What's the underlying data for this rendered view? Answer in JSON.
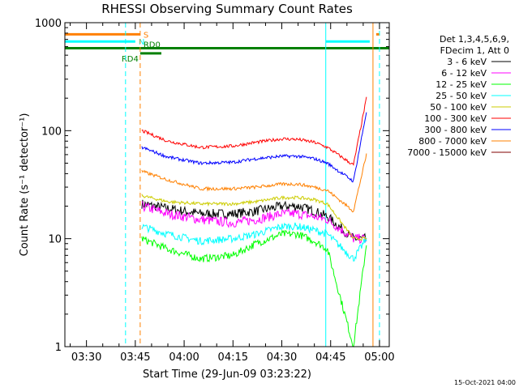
{
  "chart_data": {
    "type": "line",
    "title": "RHESSI Observing Summary Count Rates",
    "xlabel": "Start Time (29-Jun-09 03:23:22)",
    "ylabel": "Count Rate (s⁻¹ detector⁻¹)",
    "y_scale": "log",
    "xlim": [
      "03:23:22",
      "05:03:00"
    ],
    "ylim": [
      1,
      1000
    ],
    "x_ticks": [
      "03:30",
      "03:45",
      "04:00",
      "04:15",
      "04:30",
      "04:45",
      "05:00"
    ],
    "y_ticks": [
      "1",
      "10",
      "100",
      "1000"
    ],
    "legend_header": [
      "Det 1,3,4,5,6,9,",
      "FDecim 1, Att 0"
    ],
    "legend_position": "right",
    "timestamp": "15-Oct-2021 04:00",
    "flags": [
      {
        "label": "S",
        "color": "#ff8000",
        "y": 780,
        "x_start": "03:23:22",
        "x_end": "03:46:30"
      },
      {
        "label": "N",
        "color": "#00ffff",
        "y": 670,
        "x_start": "03:23:22",
        "x_end": "03:45:00"
      },
      {
        "label": "RD0",
        "color": "#008000",
        "y": 580,
        "x_start": "03:23:22",
        "x_end": "05:03:00"
      },
      {
        "label": "RD4",
        "color": "#008000",
        "y": 520,
        "x_start": "03:46:30",
        "x_end": "03:53:00"
      }
    ],
    "vertical_markers": [
      {
        "x": "03:42:00",
        "color": "#00ffff",
        "style": "dashed"
      },
      {
        "x": "03:46:30",
        "color": "#ff8000",
        "style": "dashed"
      },
      {
        "x": "04:43:30",
        "color": "#00ffff",
        "style": "solid"
      },
      {
        "x": "04:58:00",
        "color": "#ff8000",
        "style": "solid"
      },
      {
        "x": "05:00:00",
        "color": "#00ffff",
        "style": "dashed"
      }
    ],
    "series": [
      {
        "name": "3 - 6 keV",
        "color": "#000000",
        "x": [
          "03:47",
          "03:55",
          "04:05",
          "04:15",
          "04:22",
          "04:30",
          "04:35",
          "04:40",
          "04:44",
          "04:52",
          "04:56"
        ],
        "values": [
          21,
          19,
          17,
          17,
          18,
          20,
          20,
          18,
          16,
          10,
          10
        ]
      },
      {
        "name": "6 - 12 keV",
        "color": "#ff00ff",
        "x": [
          "03:47",
          "03:55",
          "04:05",
          "04:15",
          "04:22",
          "04:30",
          "04:35",
          "04:40",
          "04:44",
          "04:52",
          "04:56"
        ],
        "values": [
          20,
          17,
          15,
          14,
          15,
          17,
          17,
          16,
          15,
          10,
          10
        ]
      },
      {
        "name": "12 - 25 keV",
        "color": "#00ff00",
        "x": [
          "03:47",
          "03:55",
          "04:05",
          "04:15",
          "04:22",
          "04:30",
          "04:35",
          "04:40",
          "04:44",
          "04:52",
          "04:56"
        ],
        "values": [
          10,
          8,
          6.5,
          7,
          9,
          11,
          11,
          9.5,
          8,
          1,
          9
        ]
      },
      {
        "name": "25 - 50 keV",
        "color": "#00ffff",
        "x": [
          "03:47",
          "03:55",
          "04:05",
          "04:15",
          "04:22",
          "04:30",
          "04:35",
          "04:40",
          "04:44",
          "04:52",
          "04:56"
        ],
        "values": [
          13,
          11,
          9.5,
          10,
          11,
          13,
          13,
          12,
          11,
          6.5,
          10
        ]
      },
      {
        "name": "50 - 100 keV",
        "color": "#cccc00",
        "x": [
          "03:47",
          "03:55",
          "04:05",
          "04:15",
          "04:22",
          "04:30",
          "04:35",
          "04:40",
          "04:44",
          "04:52",
          "04:56"
        ],
        "values": [
          25,
          22,
          21,
          21,
          22,
          24,
          24,
          23,
          21,
          10,
          10
        ]
      },
      {
        "name": "100 - 300 keV",
        "color": "#ff0000",
        "x": [
          "03:47",
          "03:55",
          "04:05",
          "04:15",
          "04:22",
          "04:30",
          "04:35",
          "04:40",
          "04:44",
          "04:52",
          "04:56"
        ],
        "values": [
          100,
          80,
          70,
          72,
          78,
          84,
          83,
          78,
          70,
          48,
          200
        ]
      },
      {
        "name": "300 - 800 keV",
        "color": "#0000ff",
        "x": [
          "03:47",
          "03:55",
          "04:05",
          "04:15",
          "04:22",
          "04:30",
          "04:35",
          "04:40",
          "04:44",
          "04:52",
          "04:56"
        ],
        "values": [
          70,
          57,
          50,
          51,
          55,
          58,
          58,
          55,
          50,
          34,
          150
        ]
      },
      {
        "name": "800 - 7000 keV",
        "color": "#ff8000",
        "x": [
          "03:47",
          "03:55",
          "04:05",
          "04:15",
          "04:22",
          "04:30",
          "04:35",
          "04:40",
          "04:44",
          "04:52",
          "04:56"
        ],
        "values": [
          42,
          35,
          29,
          29,
          30,
          32,
          32,
          30,
          28,
          18,
          60
        ]
      },
      {
        "name": "7000 - 15000 keV",
        "color": "#800000",
        "x": [],
        "values": []
      }
    ]
  }
}
